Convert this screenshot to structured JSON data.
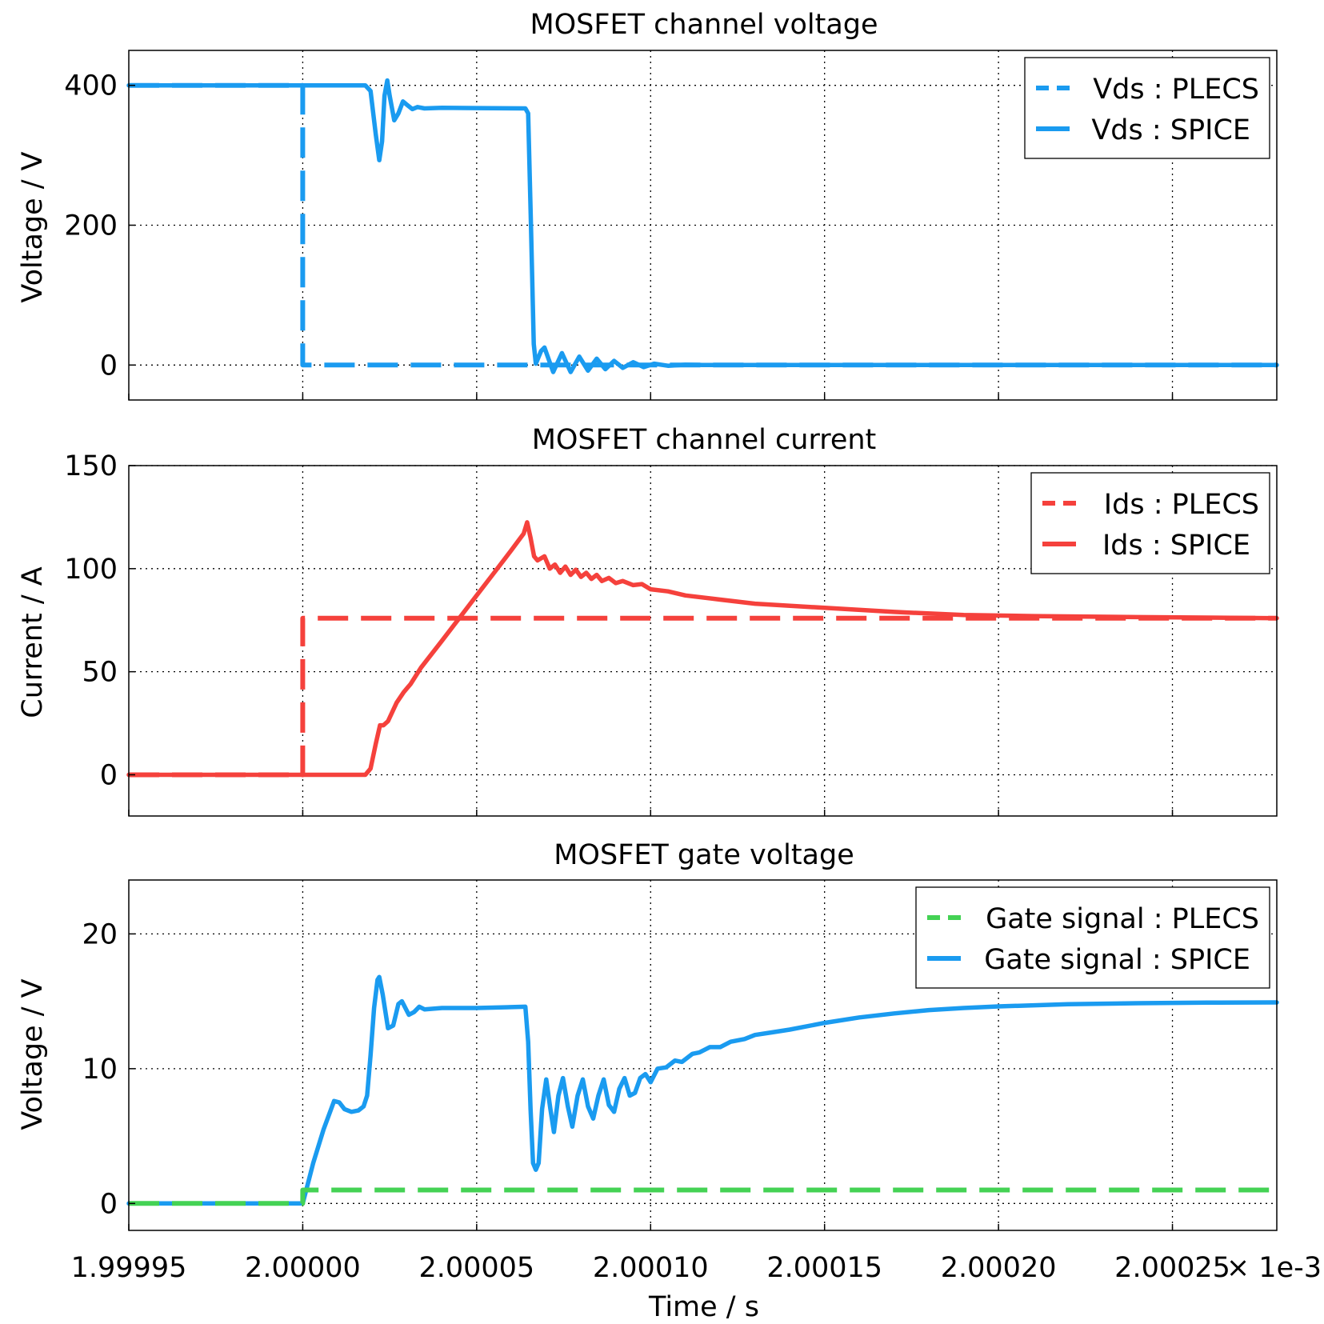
{
  "colors": {
    "blue": "#1A9BF0",
    "red": "#F5413C",
    "green": "#44D254"
  },
  "x_axis": {
    "label": "Time / s",
    "tick_labels": [
      "1.99995",
      "2.00000",
      "2.00005",
      "2.00010",
      "2.00015",
      "2.00020",
      "2.00025"
    ],
    "multiplier": "× 1e-3",
    "range": [
      1.99995,
      2.00028
    ]
  },
  "chart_data": [
    {
      "type": "line",
      "title": "MOSFET channel voltage",
      "ylabel": "Voltage / V",
      "ylim": [
        -50,
        450
      ],
      "yticks": [
        0,
        200,
        400
      ],
      "grid": true,
      "legend_position": "top-right",
      "series": [
        {
          "name": "Vds : PLECS",
          "color": "#1A9BF0",
          "dashed": true,
          "points": [
            [
              1.99995,
              400
            ],
            [
              2.0,
              400
            ],
            [
              2.0,
              0
            ],
            [
              2.00028,
              0
            ]
          ]
        },
        {
          "name": "Vds : SPICE",
          "color": "#1A9BF0",
          "dashed": false,
          "points": [
            [
              1.99995,
              400
            ],
            [
              2.000018,
              400
            ],
            [
              2.0000195,
              392
            ],
            [
              2.000021,
              330
            ],
            [
              2.000022,
              293
            ],
            [
              2.0000228,
              320
            ],
            [
              2.0000235,
              385
            ],
            [
              2.0000243,
              407
            ],
            [
              2.000025,
              385
            ],
            [
              2.0000263,
              350
            ],
            [
              2.0000275,
              360
            ],
            [
              2.0000288,
              377
            ],
            [
              2.00003,
              372
            ],
            [
              2.0000315,
              366
            ],
            [
              2.000033,
              369
            ],
            [
              2.000035,
              367
            ],
            [
              2.00004,
              368
            ],
            [
              2.00005,
              367.5
            ],
            [
              2.000064,
              367
            ],
            [
              2.0000648,
              360
            ],
            [
              2.0000656,
              200
            ],
            [
              2.0000664,
              30
            ],
            [
              2.000067,
              2
            ],
            [
              2.0000685,
              20
            ],
            [
              2.0000695,
              25
            ],
            [
              2.000072,
              -10
            ],
            [
              2.0000745,
              17
            ],
            [
              2.000077,
              -10
            ],
            [
              2.0000795,
              12
            ],
            [
              2.000082,
              -8
            ],
            [
              2.0000845,
              9
            ],
            [
              2.000087,
              -6
            ],
            [
              2.0000895,
              6
            ],
            [
              2.000092,
              -4
            ],
            [
              2.000095,
              4
            ],
            [
              2.000098,
              -3
            ],
            [
              2.000101,
              2
            ],
            [
              2.000105,
              -1
            ],
            [
              2.00011,
              0.5
            ],
            [
              2.000115,
              0
            ],
            [
              2.00028,
              0
            ]
          ]
        }
      ]
    },
    {
      "type": "line",
      "title": "MOSFET channel current",
      "ylabel": "Current / A",
      "ylim": [
        -20,
        150
      ],
      "yticks": [
        0,
        50,
        100,
        150
      ],
      "grid": true,
      "legend_position": "top-right",
      "series": [
        {
          "name": "Ids : PLECS",
          "color": "#F5413C",
          "dashed": true,
          "points": [
            [
              1.99995,
              0
            ],
            [
              2.0,
              0
            ],
            [
              2.0,
              76
            ],
            [
              2.00028,
              76
            ]
          ]
        },
        {
          "name": "Ids : SPICE",
          "color": "#F5413C",
          "dashed": false,
          "points": [
            [
              1.99995,
              0
            ],
            [
              2.000018,
              0
            ],
            [
              2.0000195,
              3
            ],
            [
              2.000021,
              15
            ],
            [
              2.0000222,
              24
            ],
            [
              2.0000232,
              24
            ],
            [
              2.0000245,
              26
            ],
            [
              2.000027,
              35
            ],
            [
              2.000029,
              40
            ],
            [
              2.000031,
              44
            ],
            [
              2.000034,
              52
            ],
            [
              2.00004,
              65
            ],
            [
              2.000045,
              76
            ],
            [
              2.00005,
              87
            ],
            [
              2.000055,
              98
            ],
            [
              2.00006,
              109
            ],
            [
              2.0000635,
              117
            ],
            [
              2.0000645,
              122.5
            ],
            [
              2.0000655,
              115
            ],
            [
              2.0000665,
              106
            ],
            [
              2.0000675,
              104
            ],
            [
              2.0000695,
              106
            ],
            [
              2.000071,
              100
            ],
            [
              2.0000725,
              102
            ],
            [
              2.000074,
              98
            ],
            [
              2.0000755,
              101
            ],
            [
              2.000077,
              97
            ],
            [
              2.0000785,
              99.5
            ],
            [
              2.00008,
              96
            ],
            [
              2.0000815,
              98
            ],
            [
              2.000083,
              95
            ],
            [
              2.0000845,
              97
            ],
            [
              2.000086,
              94
            ],
            [
              2.000088,
              95.5
            ],
            [
              2.00009,
              93
            ],
            [
              2.000092,
              94
            ],
            [
              2.000095,
              92
            ],
            [
              2.0000975,
              92.5
            ],
            [
              2.0001,
              90
            ],
            [
              2.000105,
              89
            ],
            [
              2.00011,
              87
            ],
            [
              2.00012,
              85
            ],
            [
              2.00013,
              83
            ],
            [
              2.00015,
              81
            ],
            [
              2.00017,
              79
            ],
            [
              2.00019,
              77.5
            ],
            [
              2.00021,
              77
            ],
            [
              2.00024,
              76.5
            ],
            [
              2.00028,
              76
            ]
          ]
        }
      ]
    },
    {
      "type": "line",
      "title": "MOSFET gate voltage",
      "ylabel": "Voltage / V",
      "ylim": [
        -2,
        24
      ],
      "yticks": [
        0,
        10,
        20
      ],
      "grid": true,
      "legend_position": "top-right",
      "series": [
        {
          "name": "Gate signal : PLECS",
          "color": "#44D254",
          "dashed": true,
          "points": [
            [
              1.99995,
              0
            ],
            [
              2.0,
              0
            ],
            [
              2.0,
              1
            ],
            [
              2.00028,
              1
            ]
          ]
        },
        {
          "name": "Gate signal : SPICE",
          "color": "#1A9BF0",
          "dashed": false,
          "points": [
            [
              1.99995,
              0
            ],
            [
              2.0,
              0
            ],
            [
              2.000001,
              1
            ],
            [
              2.000003,
              3
            ],
            [
              2.000006,
              5.5
            ],
            [
              2.000009,
              7.6
            ],
            [
              2.0000105,
              7.5
            ],
            [
              2.000012,
              7
            ],
            [
              2.000014,
              6.8
            ],
            [
              2.000016,
              6.9
            ],
            [
              2.0000175,
              7.2
            ],
            [
              2.0000185,
              8
            ],
            [
              2.0000195,
              11
            ],
            [
              2.0000205,
              14.5
            ],
            [
              2.0000215,
              16.6
            ],
            [
              2.000022,
              16.8
            ],
            [
              2.000023,
              15.5
            ],
            [
              2.0000245,
              13
            ],
            [
              2.000026,
              13.2
            ],
            [
              2.0000275,
              14.8
            ],
            [
              2.0000285,
              15
            ],
            [
              2.0000305,
              14
            ],
            [
              2.000032,
              14.2
            ],
            [
              2.0000335,
              14.6
            ],
            [
              2.000035,
              14.4
            ],
            [
              2.00004,
              14.5
            ],
            [
              2.00005,
              14.5
            ],
            [
              2.000064,
              14.6
            ],
            [
              2.0000648,
              12
            ],
            [
              2.0000655,
              7
            ],
            [
              2.0000662,
              3
            ],
            [
              2.000067,
              2.5
            ],
            [
              2.0000678,
              3
            ],
            [
              2.0000688,
              7
            ],
            [
              2.00007,
              9.2
            ],
            [
              2.0000712,
              7
            ],
            [
              2.0000722,
              5.3
            ],
            [
              2.0000735,
              8
            ],
            [
              2.0000748,
              9.3
            ],
            [
              2.0000762,
              7.2
            ],
            [
              2.0000775,
              5.7
            ],
            [
              2.000079,
              8
            ],
            [
              2.0000805,
              9.2
            ],
            [
              2.000082,
              7.2
            ],
            [
              2.0000835,
              6.3
            ],
            [
              2.000085,
              8
            ],
            [
              2.0000865,
              9.2
            ],
            [
              2.000088,
              7.3
            ],
            [
              2.0000895,
              6.8
            ],
            [
              2.000091,
              8.5
            ],
            [
              2.0000925,
              9.3
            ],
            [
              2.000094,
              8
            ],
            [
              2.0000955,
              8.2
            ],
            [
              2.000097,
              9.3
            ],
            [
              2.0000985,
              9.6
            ],
            [
              2.0001,
              9
            ],
            [
              2.000102,
              10
            ],
            [
              2.0001045,
              10.1
            ],
            [
              2.000107,
              10.6
            ],
            [
              2.000109,
              10.5
            ],
            [
              2.000112,
              11.1
            ],
            [
              2.000114,
              11.2
            ],
            [
              2.000117,
              11.6
            ],
            [
              2.00012,
              11.6
            ],
            [
              2.000123,
              12
            ],
            [
              2.000127,
              12.2
            ],
            [
              2.00013,
              12.5
            ],
            [
              2.000135,
              12.7
            ],
            [
              2.00014,
              12.9
            ],
            [
              2.00015,
              13.4
            ],
            [
              2.00016,
              13.8
            ],
            [
              2.00017,
              14.1
            ],
            [
              2.00018,
              14.35
            ],
            [
              2.00019,
              14.5
            ],
            [
              2.0002,
              14.62
            ],
            [
              2.00022,
              14.78
            ],
            [
              2.00024,
              14.86
            ],
            [
              2.00026,
              14.9
            ],
            [
              2.00028,
              14.92
            ]
          ]
        }
      ]
    }
  ]
}
